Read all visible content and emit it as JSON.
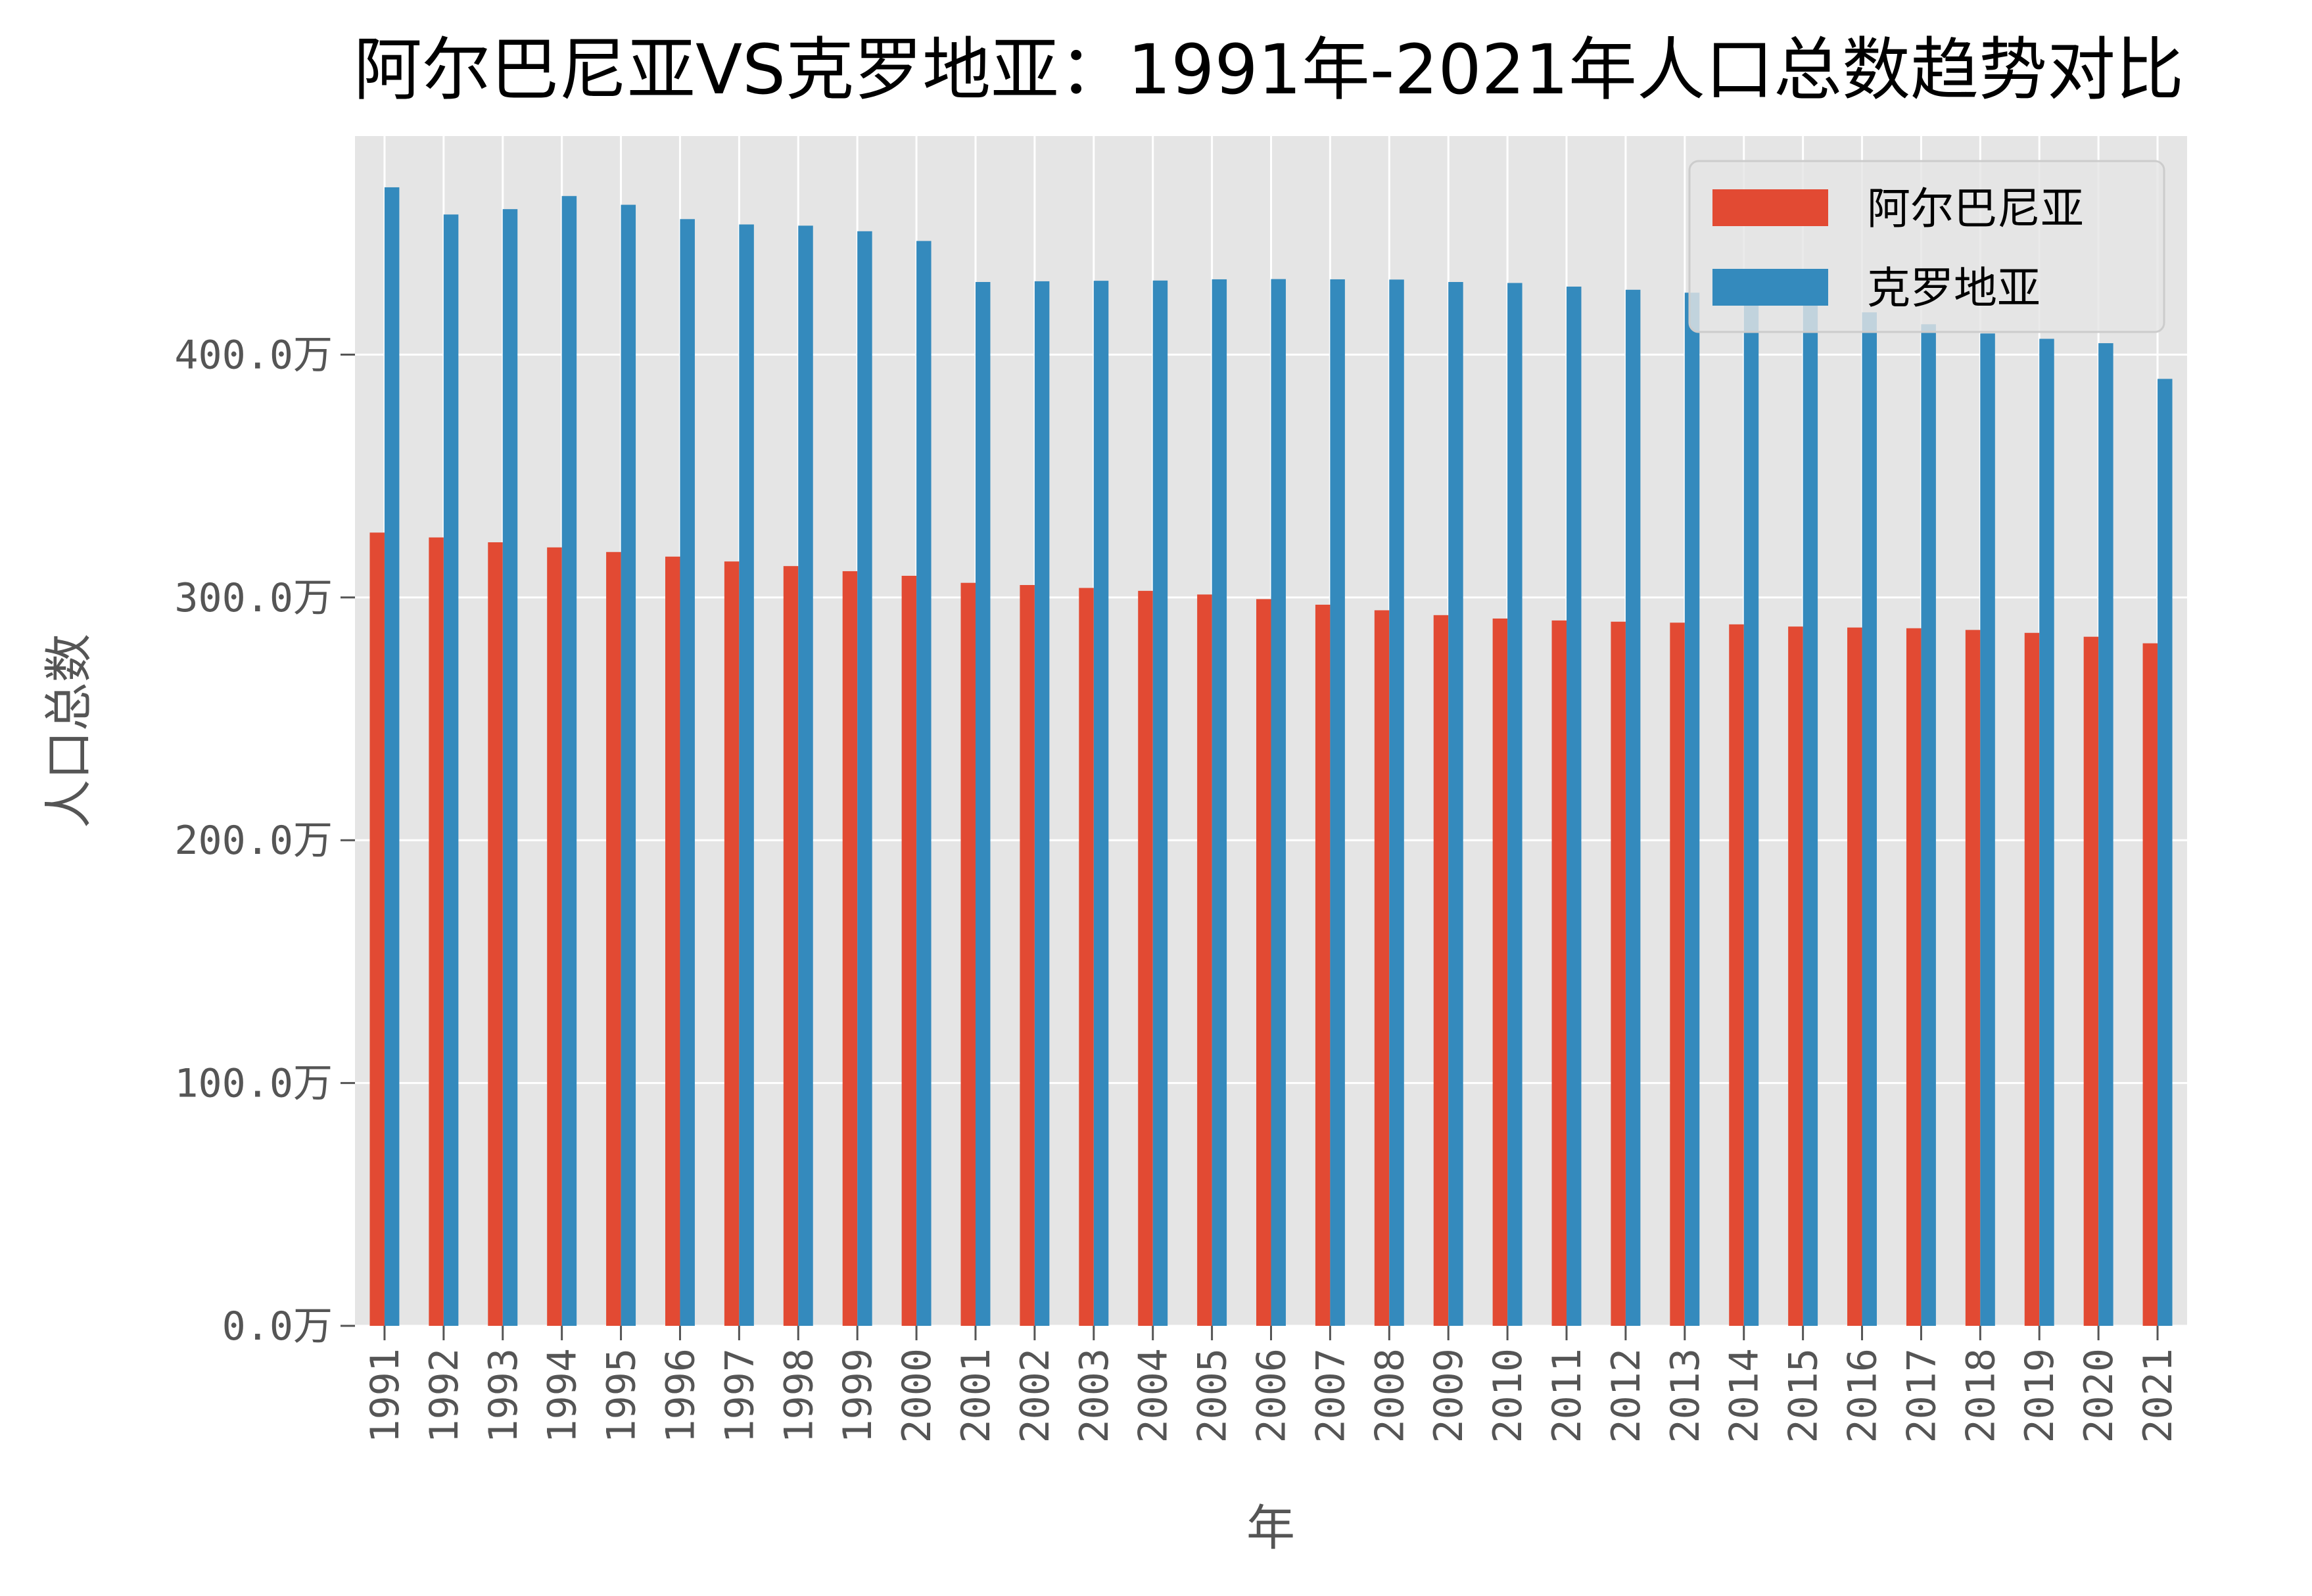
{
  "chart_data": {
    "type": "bar",
    "title": "阿尔巴尼亚VS克罗地亚：1991年-2021年人口总数趋势对比",
    "xlabel": "年",
    "ylabel": "人口总数",
    "y_unit_suffix": "万",
    "ylim": [
      0,
      490
    ],
    "yticks": [
      0,
      100,
      200,
      300,
      400
    ],
    "ytick_labels": [
      "0.0万",
      "100.0万",
      "200.0万",
      "300.0万",
      "400.0万"
    ],
    "grid": true,
    "legend_position": "top-right",
    "categories": [
      "1991",
      "1992",
      "1993",
      "1994",
      "1995",
      "1996",
      "1997",
      "1998",
      "1999",
      "2000",
      "2001",
      "2002",
      "2003",
      "2004",
      "2005",
      "2006",
      "2007",
      "2008",
      "2009",
      "2010",
      "2011",
      "2012",
      "2013",
      "2014",
      "2015",
      "2016",
      "2017",
      "2018",
      "2019",
      "2020",
      "2021"
    ],
    "series": [
      {
        "name": "阿尔巴尼亚",
        "color": "#E24A33",
        "values": [
          326.7,
          324.7,
          322.7,
          320.6,
          318.7,
          316.8,
          314.8,
          312.9,
          310.8,
          308.9,
          306.0,
          305.1,
          303.9,
          302.7,
          301.2,
          299.3,
          297.0,
          294.7,
          292.7,
          291.3,
          290.5,
          290.0,
          289.6,
          288.9,
          288.0,
          287.6,
          287.3,
          286.6,
          285.4,
          283.8,
          281.1
        ]
      },
      {
        "name": "克罗地亚",
        "color": "#348ABD",
        "values": [
          468.9,
          457.7,
          459.9,
          465.3,
          461.7,
          455.8,
          453.6,
          453.1,
          450.8,
          446.8,
          429.9,
          430.2,
          430.4,
          430.5,
          431.0,
          431.1,
          431.0,
          430.9,
          429.9,
          429.5,
          428.0,
          426.7,
          425.5,
          423.8,
          420.4,
          417.4,
          412.5,
          408.7,
          406.5,
          404.7,
          390.0
        ]
      }
    ]
  }
}
